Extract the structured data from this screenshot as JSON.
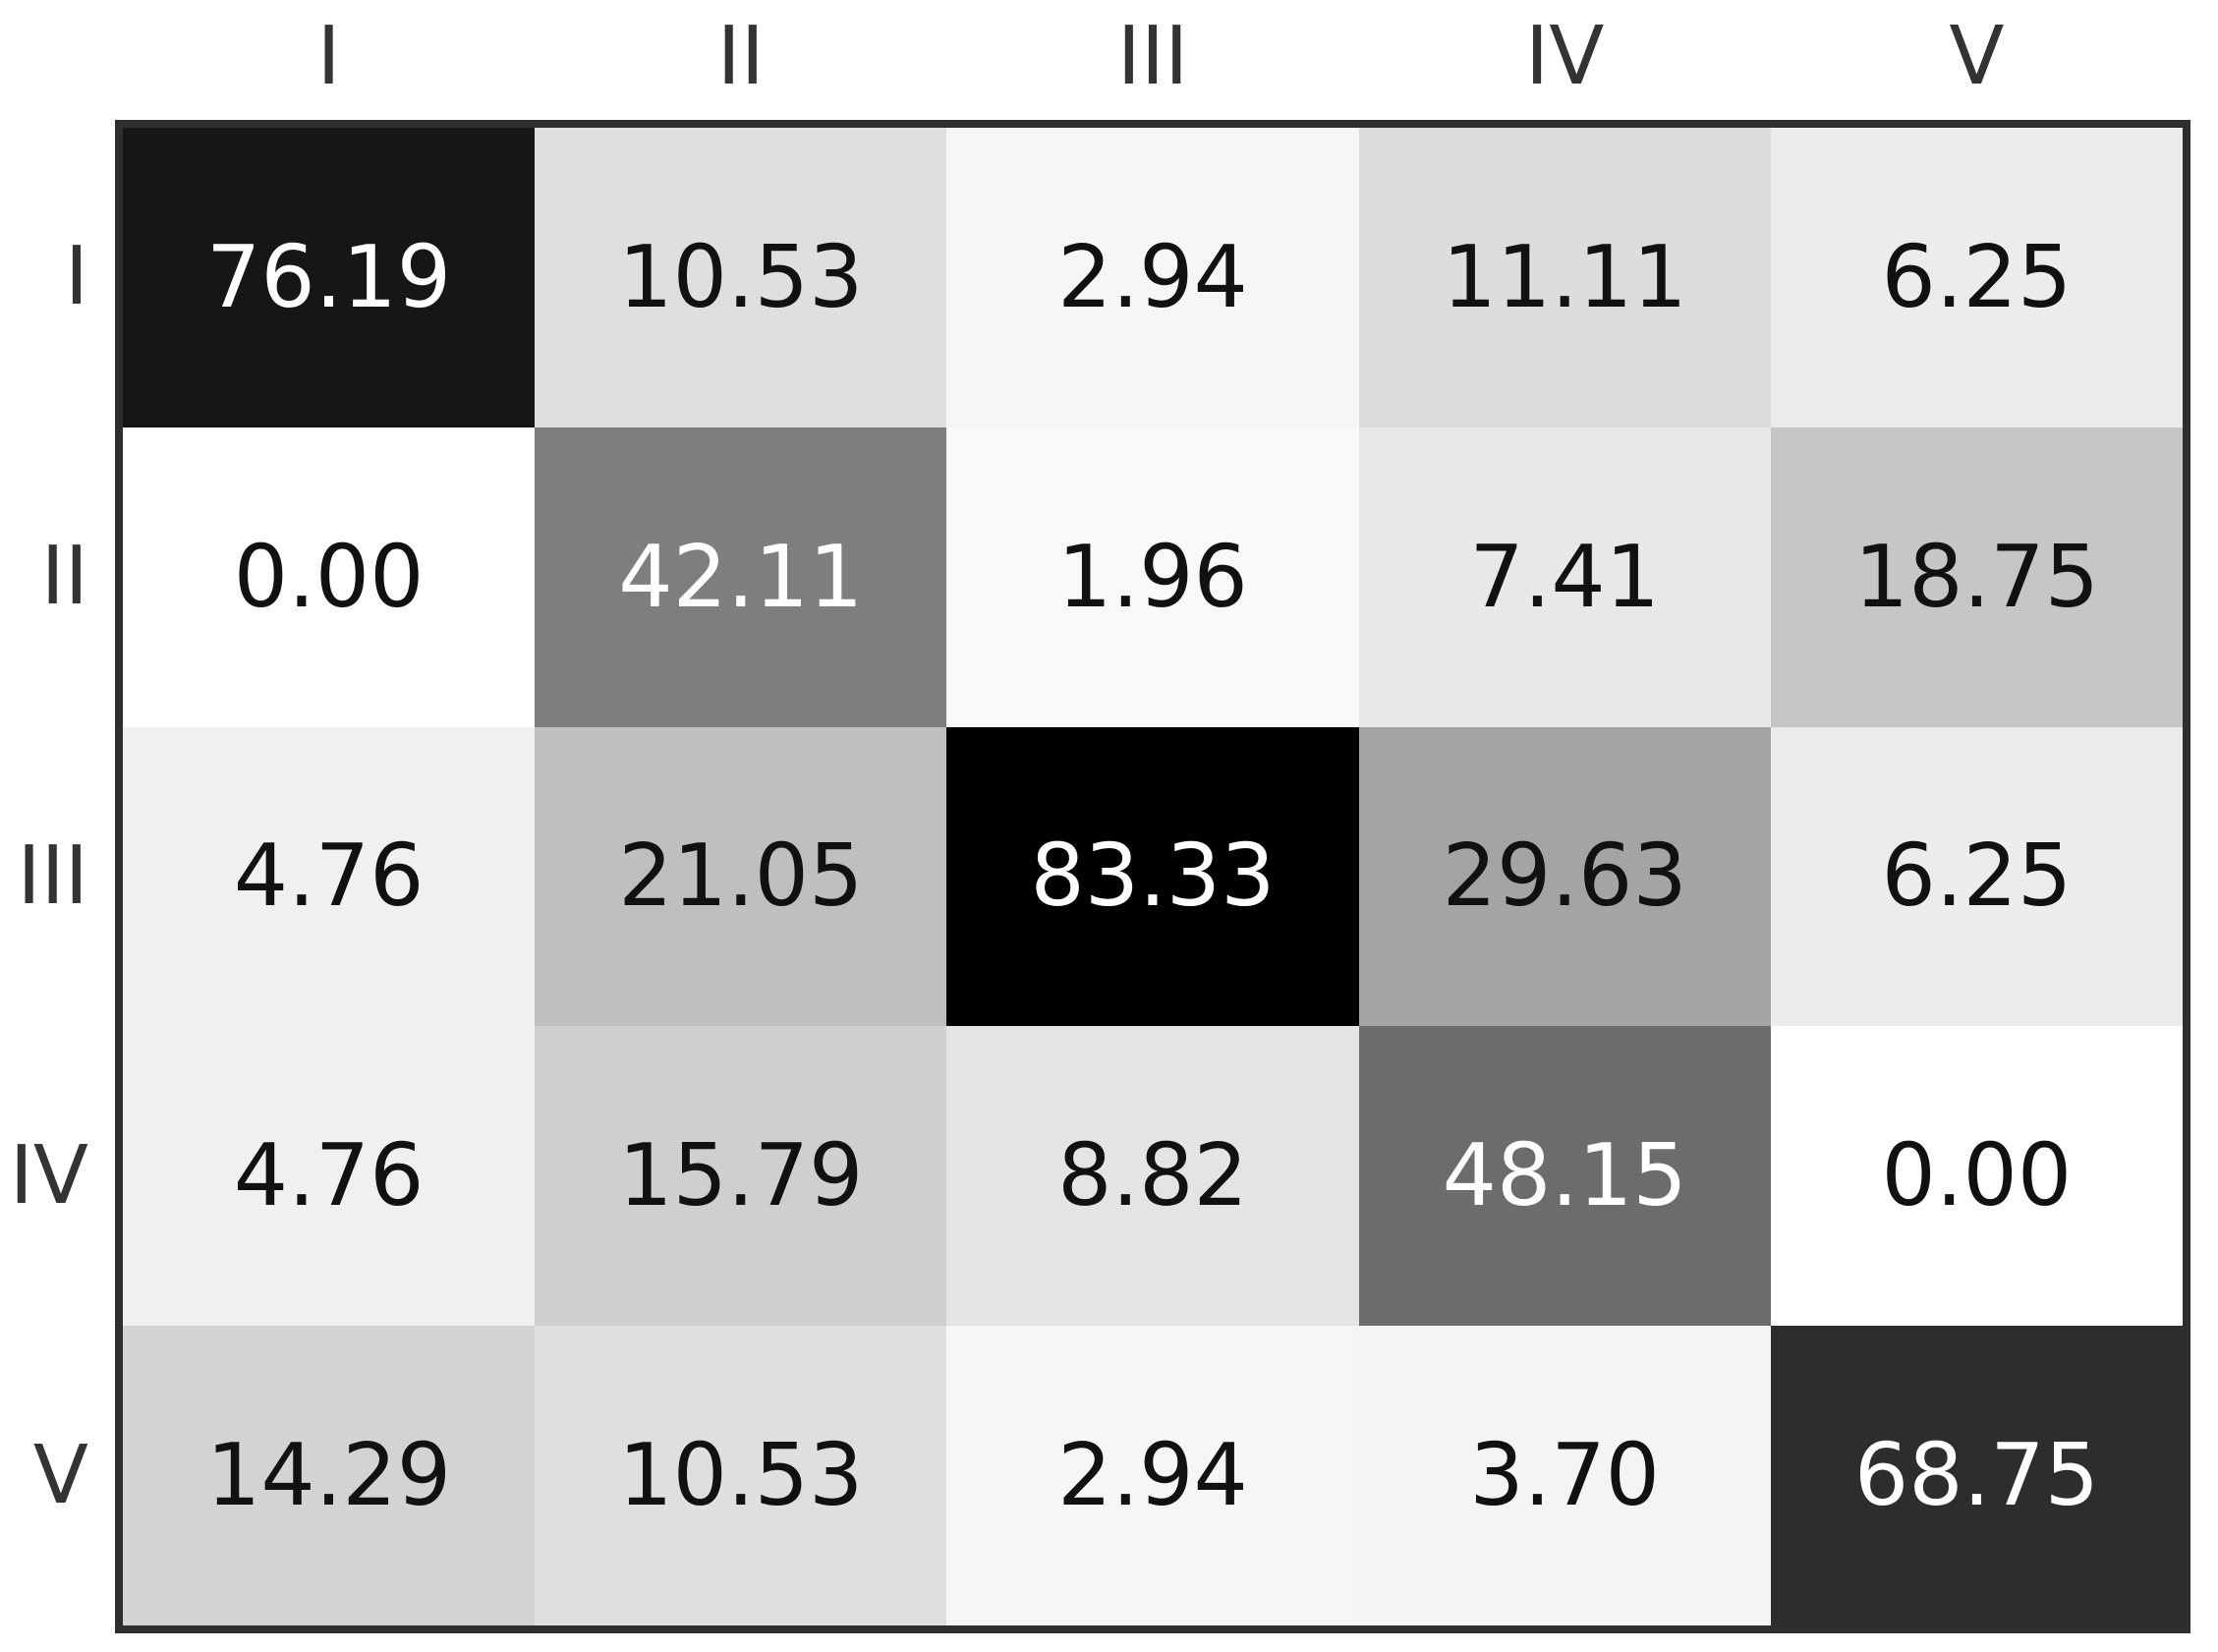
{
  "chart_data": {
    "type": "heatmap",
    "x_labels": [
      "I",
      "II",
      "III",
      "IV",
      "V"
    ],
    "y_labels": [
      "I",
      "II",
      "III",
      "IV",
      "V"
    ],
    "values": [
      [
        76.19,
        10.53,
        2.94,
        11.11,
        6.25
      ],
      [
        0.0,
        42.11,
        1.96,
        7.41,
        18.75
      ],
      [
        4.76,
        21.05,
        83.33,
        29.63,
        6.25
      ],
      [
        4.76,
        15.79,
        8.82,
        48.15,
        0.0
      ],
      [
        14.29,
        10.53,
        2.94,
        3.7,
        68.75
      ]
    ],
    "decimals": 2,
    "vmin": 0,
    "vmax": 83.33,
    "colormap": "linear-greys-white-to-black",
    "white_text_threshold": 41.67,
    "text_color_dark": "#111111",
    "text_color_light": "#ffffff",
    "border_color": "#2e2e2e",
    "axis_label_color": "#333333",
    "background": "#ffffff",
    "grid": false,
    "legend": "none",
    "title": ""
  }
}
